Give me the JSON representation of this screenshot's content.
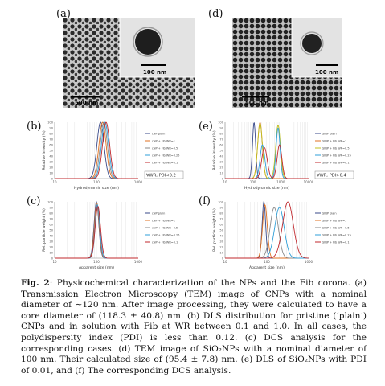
{
  "panels": {
    "a": {
      "label": "(a)",
      "inset_scale": "100 nm",
      "main_scale": "500 nm"
    },
    "d": {
      "label": "(d)",
      "inset_scale": "100 nm",
      "main_scale": "500 nm"
    },
    "b": {
      "label": "(b)",
      "note": "∀WR, PDI<0.2"
    },
    "e": {
      "label": "(e)",
      "note": "∀WR, PDI>0.4"
    },
    "c": {
      "label": "(c)"
    },
    "f": {
      "label": "(f)"
    }
  },
  "caption": {
    "fig": "Fig. 2",
    "text": ": Physicochemical characterization of the NPs and the Fib corona. (a) Transmission Electron Microscopy (TEM) image of CNPs with a nominal diameter of ∼120 nm. After image processing, they were calculated to have a core diameter of (118.3 ± 40.8) nm. (b) DLS distribution for pristine (‘plain’) CNPs and in solution with Fib at WR between 0.1 and 1.0. In all cases, the polydispersity index (PDI) is less than 0.12. (c) DCS analysis for the corresponding cases. (d) TEM image of SiO₂NPs with a nominal diameter of 100 nm. Their calculated size of (95.4 ± 7.8) nm. (e) DLS of SiO₂NPs with PDI of 0.01, and (f) The corresponding DCS analysis."
  },
  "chart_data": [
    {
      "id": "b",
      "type": "line",
      "xlabel": "Hydrodynamic size (nm)",
      "ylabel": "Relative intensity (%)",
      "xscale": "log",
      "xlim": [
        10,
        1000
      ],
      "ylim": [
        0,
        100
      ],
      "xticks": [
        "10",
        "100",
        "1000"
      ],
      "yticks": [
        "0",
        "10",
        "20",
        "30",
        "40",
        "50",
        "60",
        "70",
        "80",
        "90",
        "100"
      ],
      "legend": [
        "cNP plain",
        "cNP + Fib WR=1",
        "cNP + Fib WR=0.5",
        "cNP + Fib WR=0.25",
        "cNP + Fib WR=0.1"
      ],
      "series": [
        {
          "color": "#3a4a8a",
          "peaks": [
            {
              "x": 125,
              "y": 100,
              "w": 0.12
            }
          ]
        },
        {
          "color": "#e07020",
          "peaks": [
            {
              "x": 140,
              "y": 100,
              "w": 0.12
            }
          ]
        },
        {
          "color": "#8a8a8a",
          "peaks": [
            {
              "x": 150,
              "y": 100,
              "w": 0.12
            }
          ]
        },
        {
          "color": "#2f9fd8",
          "peaks": [
            {
              "x": 160,
              "y": 100,
              "w": 0.12
            }
          ]
        },
        {
          "color": "#c0282d",
          "peaks": [
            {
              "x": 170,
              "y": 100,
              "w": 0.12
            }
          ]
        }
      ]
    },
    {
      "id": "e",
      "type": "line",
      "xlabel": "Hydrodynamic size (nm)",
      "ylabel": "Relative intensity (%)",
      "xscale": "log",
      "xlim": [
        10,
        10000
      ],
      "ylim": [
        0,
        100
      ],
      "xticks": [
        "10",
        "100",
        "1000",
        "10000"
      ],
      "yticks": [
        "0",
        "10",
        "20",
        "30",
        "40",
        "50",
        "60",
        "70",
        "80",
        "90",
        "100"
      ],
      "legend": [
        "SINP plain",
        "SINP + Fib WR=1",
        "SINP + Fib WR=0.5",
        "SINP + Fib WR=0.25",
        "SINP + Fib WR=0.1"
      ],
      "series": [
        {
          "color": "#3a4a8a",
          "peaks": [
            {
              "x": 110,
              "y": 100,
              "w": 0.08
            }
          ]
        },
        {
          "color": "#e07020",
          "peaks": [
            {
              "x": 180,
              "y": 100,
              "w": 0.12
            }
          ]
        },
        {
          "color": "#c0c020",
          "peaks": [
            {
              "x": 180,
              "y": 98,
              "w": 0.12
            },
            {
              "x": 800,
              "y": 95,
              "w": 0.12
            }
          ]
        },
        {
          "color": "#2f9fd8",
          "peaks": [
            {
              "x": 220,
              "y": 60,
              "w": 0.12
            },
            {
              "x": 800,
              "y": 90,
              "w": 0.1
            }
          ]
        },
        {
          "color": "#c0282d",
          "peaks": [
            {
              "x": 260,
              "y": 55,
              "w": 0.14
            },
            {
              "x": 900,
              "y": 60,
              "w": 0.12
            }
          ]
        }
      ]
    },
    {
      "id": "c",
      "type": "line",
      "xlabel": "Apparent size (nm)",
      "ylabel": "Rel. particle weight (%)",
      "xscale": "log",
      "xlim": [
        10,
        1000
      ],
      "ylim": [
        0,
        100
      ],
      "xticks": [
        "10",
        "100",
        "1000"
      ],
      "yticks": [
        "0",
        "10",
        "20",
        "30",
        "40",
        "50",
        "60",
        "70",
        "80",
        "90",
        "100"
      ],
      "legend": [
        "cNP plain",
        "cNP + Fib WR=1",
        "cNP + Fib WR=0.5",
        "cNP + Fib WR=0.25",
        "cNP + Fib WR=0.1"
      ],
      "series": [
        {
          "color": "#3a4a8a",
          "peaks": [
            {
              "x": 100,
              "y": 100,
              "w": 0.08
            }
          ]
        },
        {
          "color": "#e07020",
          "peaks": [
            {
              "x": 102,
              "y": 98,
              "w": 0.08
            }
          ]
        },
        {
          "color": "#8a8a8a",
          "peaks": [
            {
              "x": 104,
              "y": 96,
              "w": 0.08
            }
          ]
        },
        {
          "color": "#2f9fd8",
          "peaks": [
            {
              "x": 106,
              "y": 94,
              "w": 0.08
            }
          ]
        },
        {
          "color": "#c0282d",
          "peaks": [
            {
              "x": 108,
              "y": 92,
              "w": 0.09
            }
          ]
        }
      ]
    },
    {
      "id": "f",
      "type": "line",
      "xlabel": "Apparent size (nm)",
      "ylabel": "Rel. particle weight (%)",
      "xscale": "log",
      "xlim": [
        10,
        1000
      ],
      "ylim": [
        0,
        100
      ],
      "xticks": [
        "10",
        "100",
        "1000"
      ],
      "yticks": [
        "0",
        "10",
        "20",
        "30",
        "40",
        "50",
        "60",
        "70",
        "80",
        "90",
        "100"
      ],
      "legend": [
        "SINP plain",
        "SINP + Fib WR=1",
        "SINP + Fib WR=0.5",
        "SINP + Fib WR=0.25",
        "SINP + Fib WR=0.1"
      ],
      "series": [
        {
          "color": "#3a4a8a",
          "peaks": [
            {
              "x": 85,
              "y": 100,
              "w": 0.06
            }
          ]
        },
        {
          "color": "#e07020",
          "peaks": [
            {
              "x": 90,
              "y": 95,
              "w": 0.08
            }
          ]
        },
        {
          "color": "#8a8a8a",
          "peaks": [
            {
              "x": 150,
              "y": 90,
              "w": 0.14
            }
          ]
        },
        {
          "color": "#2f9fd8",
          "peaks": [
            {
              "x": 200,
              "y": 90,
              "w": 0.16
            }
          ]
        },
        {
          "color": "#c0282d",
          "peaks": [
            {
              "x": 320,
              "y": 100,
              "w": 0.18
            }
          ]
        }
      ]
    }
  ]
}
